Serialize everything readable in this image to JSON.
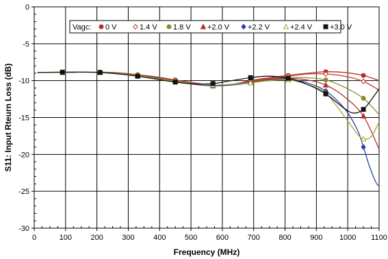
{
  "chart_data": {
    "type": "line",
    "title": "",
    "xlabel": "Frequency (MHz)",
    "ylabel": "S11: Input Rteurn Loss (dB)",
    "xlim": [
      0,
      1100
    ],
    "ylim": [
      -30,
      0
    ],
    "x_ticks": [
      0,
      100,
      200,
      300,
      400,
      500,
      600,
      700,
      800,
      900,
      1000,
      1100
    ],
    "y_ticks": [
      0,
      -5,
      -10,
      -15,
      -20,
      -25,
      -30
    ],
    "x_tick_labels": [
      "0",
      "100",
      "200",
      "300",
      "400",
      "500",
      "600",
      "700",
      "800",
      "900",
      "1000",
      "1100"
    ],
    "y_tick_labels": [
      "0",
      "-5",
      "-10",
      "-15",
      "-20",
      "-25",
      "-30"
    ],
    "grid": true,
    "minor_ticks": true,
    "legend": {
      "title": "Vagc:",
      "placement": "top-right"
    },
    "series": [
      {
        "name": "0 V",
        "color": "#b5302a",
        "marker": "circle-filled",
        "markers": [
          [
            90,
            -8.9
          ],
          [
            210,
            -8.85
          ],
          [
            330,
            -9.2
          ],
          [
            450,
            -9.9
          ],
          [
            570,
            -10.6
          ],
          [
            690,
            -10.0
          ],
          [
            810,
            -9.3
          ],
          [
            930,
            -8.8
          ],
          [
            1050,
            -9.3
          ]
        ],
        "points": [
          [
            10,
            -8.9
          ],
          [
            90,
            -8.9
          ],
          [
            150,
            -8.85
          ],
          [
            210,
            -8.85
          ],
          [
            270,
            -8.95
          ],
          [
            330,
            -9.2
          ],
          [
            390,
            -9.5
          ],
          [
            450,
            -9.9
          ],
          [
            510,
            -10.3
          ],
          [
            570,
            -10.6
          ],
          [
            630,
            -10.5
          ],
          [
            690,
            -10.0
          ],
          [
            750,
            -9.6
          ],
          [
            810,
            -9.3
          ],
          [
            870,
            -9.0
          ],
          [
            930,
            -8.8
          ],
          [
            990,
            -8.9
          ],
          [
            1050,
            -9.3
          ],
          [
            1100,
            -10.0
          ]
        ]
      },
      {
        "name": "1.4 V",
        "color": "#c0392b",
        "marker": "diamond-open",
        "markers": [
          [
            90,
            -8.9
          ],
          [
            210,
            -8.85
          ],
          [
            330,
            -9.2
          ],
          [
            450,
            -9.95
          ],
          [
            570,
            -10.6
          ],
          [
            690,
            -10.1
          ],
          [
            810,
            -9.4
          ],
          [
            930,
            -9.1
          ],
          [
            1050,
            -10.1
          ]
        ],
        "points": [
          [
            10,
            -8.9
          ],
          [
            90,
            -8.9
          ],
          [
            150,
            -8.85
          ],
          [
            210,
            -8.85
          ],
          [
            270,
            -8.95
          ],
          [
            330,
            -9.2
          ],
          [
            390,
            -9.55
          ],
          [
            450,
            -9.95
          ],
          [
            510,
            -10.35
          ],
          [
            570,
            -10.6
          ],
          [
            630,
            -10.5
          ],
          [
            690,
            -10.1
          ],
          [
            750,
            -9.7
          ],
          [
            810,
            -9.4
          ],
          [
            870,
            -9.1
          ],
          [
            930,
            -9.1
          ],
          [
            990,
            -9.4
          ],
          [
            1050,
            -10.1
          ],
          [
            1100,
            -11.3
          ]
        ]
      },
      {
        "name": "1.8 V",
        "color": "#8a8a2a",
        "marker": "circle-filled",
        "markers": [
          [
            90,
            -8.9
          ],
          [
            210,
            -8.85
          ],
          [
            330,
            -9.25
          ],
          [
            450,
            -10.0
          ],
          [
            570,
            -10.7
          ],
          [
            690,
            -10.2
          ],
          [
            810,
            -9.6
          ],
          [
            930,
            -9.9
          ],
          [
            1050,
            -12.4
          ]
        ],
        "points": [
          [
            10,
            -8.9
          ],
          [
            90,
            -8.9
          ],
          [
            150,
            -8.85
          ],
          [
            210,
            -8.85
          ],
          [
            270,
            -9.0
          ],
          [
            330,
            -9.25
          ],
          [
            390,
            -9.6
          ],
          [
            450,
            -10.0
          ],
          [
            510,
            -10.4
          ],
          [
            570,
            -10.7
          ],
          [
            630,
            -10.55
          ],
          [
            690,
            -10.2
          ],
          [
            750,
            -9.8
          ],
          [
            810,
            -9.6
          ],
          [
            870,
            -9.6
          ],
          [
            930,
            -9.9
          ],
          [
            990,
            -10.9
          ],
          [
            1050,
            -12.4
          ],
          [
            1100,
            -14.6
          ]
        ]
      },
      {
        "name": "+2.0 V",
        "color": "#b5302a",
        "marker": "triangle-filled",
        "markers": [
          [
            90,
            -8.9
          ],
          [
            210,
            -8.85
          ],
          [
            330,
            -9.25
          ],
          [
            450,
            -10.05
          ],
          [
            570,
            -10.7
          ],
          [
            690,
            -10.2
          ],
          [
            810,
            -9.7
          ],
          [
            930,
            -10.6
          ],
          [
            1050,
            -14.8
          ]
        ],
        "points": [
          [
            10,
            -8.9
          ],
          [
            90,
            -8.9
          ],
          [
            150,
            -8.85
          ],
          [
            210,
            -8.85
          ],
          [
            270,
            -9.0
          ],
          [
            330,
            -9.25
          ],
          [
            390,
            -9.6
          ],
          [
            450,
            -10.05
          ],
          [
            510,
            -10.45
          ],
          [
            570,
            -10.7
          ],
          [
            630,
            -10.55
          ],
          [
            690,
            -10.2
          ],
          [
            750,
            -9.85
          ],
          [
            810,
            -9.7
          ],
          [
            870,
            -9.9
          ],
          [
            930,
            -10.6
          ],
          [
            990,
            -12.2
          ],
          [
            1050,
            -14.8
          ],
          [
            1100,
            -19.3
          ]
        ]
      },
      {
        "name": "+2.2 V",
        "color": "#2b3ea6",
        "marker": "diamond-filled",
        "markers": [
          [
            90,
            -8.9
          ],
          [
            210,
            -8.85
          ],
          [
            330,
            -9.3
          ],
          [
            450,
            -10.1
          ],
          [
            570,
            -10.7
          ],
          [
            690,
            -10.3
          ],
          [
            810,
            -9.8
          ],
          [
            930,
            -11.4
          ],
          [
            1050,
            -19.0
          ]
        ],
        "points": [
          [
            10,
            -8.9
          ],
          [
            90,
            -8.9
          ],
          [
            150,
            -8.85
          ],
          [
            210,
            -8.85
          ],
          [
            270,
            -9.0
          ],
          [
            330,
            -9.3
          ],
          [
            390,
            -9.65
          ],
          [
            450,
            -10.1
          ],
          [
            510,
            -10.5
          ],
          [
            570,
            -10.7
          ],
          [
            630,
            -10.6
          ],
          [
            690,
            -10.3
          ],
          [
            750,
            -9.95
          ],
          [
            810,
            -9.8
          ],
          [
            870,
            -10.3
          ],
          [
            930,
            -11.4
          ],
          [
            990,
            -13.8
          ],
          [
            1030,
            -16.6
          ],
          [
            1050,
            -19.0
          ],
          [
            1070,
            -21.7
          ],
          [
            1090,
            -23.8
          ],
          [
            1100,
            -24.3
          ]
        ]
      },
      {
        "name": "+2.4 V",
        "color": "#9aa832",
        "marker": "triangle-open",
        "markers": [
          [
            90,
            -8.9
          ],
          [
            210,
            -8.85
          ],
          [
            330,
            -9.3
          ],
          [
            450,
            -10.1
          ],
          [
            570,
            -10.6
          ],
          [
            690,
            -10.3
          ],
          [
            810,
            -9.9
          ],
          [
            930,
            -11.7
          ],
          [
            1050,
            -17.9
          ]
        ],
        "points": [
          [
            10,
            -8.9
          ],
          [
            90,
            -8.9
          ],
          [
            150,
            -8.85
          ],
          [
            210,
            -8.85
          ],
          [
            270,
            -9.05
          ],
          [
            330,
            -9.3
          ],
          [
            390,
            -9.7
          ],
          [
            450,
            -10.1
          ],
          [
            510,
            -10.45
          ],
          [
            570,
            -10.6
          ],
          [
            630,
            -10.5
          ],
          [
            690,
            -10.3
          ],
          [
            750,
            -10.0
          ],
          [
            810,
            -9.9
          ],
          [
            870,
            -10.5
          ],
          [
            930,
            -11.7
          ],
          [
            990,
            -14.9
          ],
          [
            1030,
            -17.2
          ],
          [
            1050,
            -17.9
          ],
          [
            1075,
            -17.6
          ],
          [
            1100,
            -15.6
          ]
        ]
      },
      {
        "name": "+3.0 V",
        "color": "#111111",
        "marker": "square-filled",
        "markers": [
          [
            90,
            -8.85
          ],
          [
            210,
            -8.9
          ],
          [
            330,
            -9.4
          ],
          [
            450,
            -10.2
          ],
          [
            570,
            -10.4
          ],
          [
            690,
            -9.6
          ],
          [
            810,
            -9.7
          ],
          [
            930,
            -11.8
          ],
          [
            1050,
            -13.9
          ]
        ],
        "points": [
          [
            10,
            -8.9
          ],
          [
            90,
            -8.85
          ],
          [
            150,
            -8.85
          ],
          [
            210,
            -8.9
          ],
          [
            270,
            -9.1
          ],
          [
            330,
            -9.4
          ],
          [
            390,
            -9.8
          ],
          [
            450,
            -10.2
          ],
          [
            510,
            -10.45
          ],
          [
            570,
            -10.4
          ],
          [
            630,
            -10.0
          ],
          [
            690,
            -9.6
          ],
          [
            750,
            -9.4
          ],
          [
            810,
            -9.7
          ],
          [
            870,
            -10.5
          ],
          [
            930,
            -11.8
          ],
          [
            990,
            -13.8
          ],
          [
            1020,
            -14.4
          ],
          [
            1050,
            -13.9
          ],
          [
            1075,
            -12.6
          ],
          [
            1100,
            -11.1
          ]
        ]
      }
    ]
  }
}
